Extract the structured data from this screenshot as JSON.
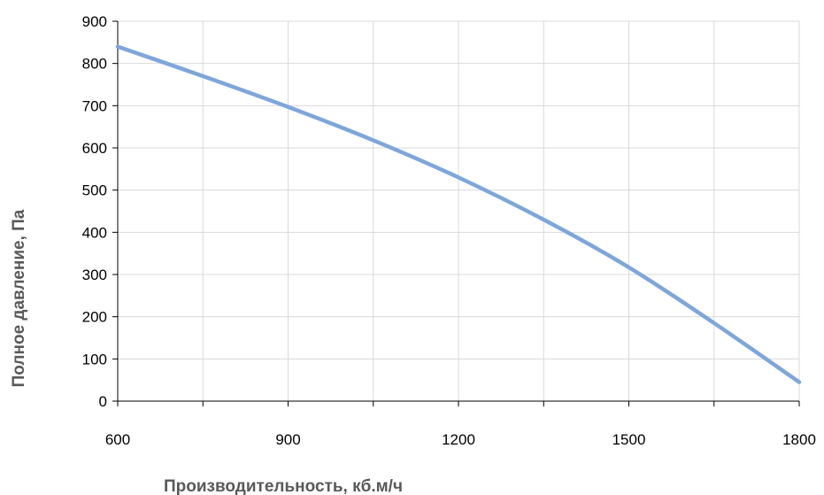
{
  "chart_data": {
    "type": "line",
    "title": "",
    "xlabel": "Производительность, кб.м/ч",
    "ylabel": "Полное  давление, Па",
    "xlim": [
      600,
      1800
    ],
    "ylim": [
      0,
      900
    ],
    "x_ticks": [
      "600",
      "900",
      "1200",
      "1500",
      "1800"
    ],
    "y_ticks": [
      "0",
      "100",
      "200",
      "300",
      "400",
      "500",
      "600",
      "700",
      "800",
      "900"
    ],
    "x_grid_step": 150,
    "y_grid_step": 100,
    "grid": true,
    "legend": "none",
    "series": [
      {
        "color": "#7FA6DB",
        "x": [
          600,
          750,
          900,
          1050,
          1200,
          1350,
          1500,
          1650,
          1800
        ],
        "y": [
          840,
          770,
          697,
          618,
          530,
          430,
          317,
          185,
          45
        ]
      }
    ]
  }
}
